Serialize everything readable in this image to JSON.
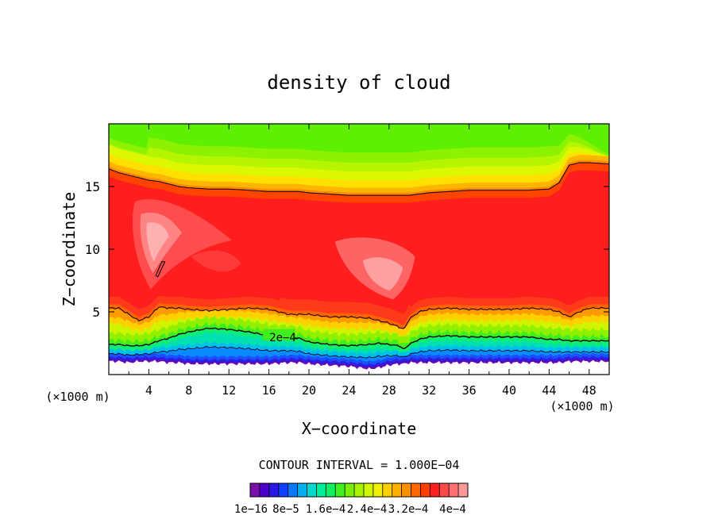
{
  "chart_data": {
    "type": "heatmap",
    "title": "density of cloud",
    "xlabel": "X−coordinate",
    "ylabel": "Z−coordinate",
    "x_unit_left": "(×1000 m)",
    "x_unit_right": "(×1000 m)",
    "xlim": [
      0,
      50
    ],
    "ylim": [
      0,
      20
    ],
    "xticks": [
      4,
      8,
      12,
      16,
      20,
      24,
      28,
      32,
      36,
      40,
      44,
      48
    ],
    "yticks": [
      5,
      10,
      15
    ],
    "contour_interval_text": "CONTOUR INTERVAL = 1.000E−04",
    "contour_label": "2e−4",
    "colorbar": {
      "labels": [
        "1e−16",
        "8e−5",
        "1.6e−4",
        "2.4e−4",
        "3.2e−4",
        "4e−4"
      ],
      "colors": [
        "#7a0faa",
        "#4a00c8",
        "#2a18e8",
        "#1040ff",
        "#0a78ff",
        "#00b0f0",
        "#00d8d0",
        "#00ee98",
        "#10f060",
        "#40f020",
        "#78f000",
        "#a8f400",
        "#d0f800",
        "#f0f000",
        "#ffd000",
        "#ffb000",
        "#ff9000",
        "#ff6800",
        "#ff4000",
        "#ff2020",
        "#ff4a4a",
        "#ff7070",
        "#ff9898"
      ]
    },
    "profile": {
      "x": [
        0,
        1,
        2,
        3,
        4,
        5,
        6,
        7,
        8,
        10,
        12,
        14,
        16,
        18,
        19,
        20,
        22,
        24,
        26,
        27,
        28,
        29,
        29.5,
        30,
        31,
        32,
        34,
        36,
        38,
        40,
        42,
        44,
        45,
        46,
        47,
        48,
        50
      ],
      "top_contour_z": [
        16.4,
        16.1,
        15.9,
        15.7,
        15.5,
        15.4,
        15.2,
        15.0,
        14.9,
        14.8,
        14.8,
        14.7,
        14.6,
        14.6,
        14.6,
        14.5,
        14.4,
        14.3,
        14.3,
        14.3,
        14.3,
        14.3,
        14.3,
        14.3,
        14.4,
        14.5,
        14.6,
        14.7,
        14.7,
        14.7,
        14.7,
        14.8,
        15.3,
        16.7,
        16.9,
        16.9,
        16.8
      ],
      "mid_contour_z": [
        5.3,
        5.3,
        4.8,
        4.3,
        4.6,
        5.4,
        5.3,
        5.3,
        5.2,
        5.1,
        5.2,
        5.3,
        5.2,
        4.8,
        4.8,
        4.8,
        4.6,
        4.6,
        4.5,
        4.3,
        4.1,
        3.8,
        3.6,
        4.4,
        5.0,
        5.2,
        5.3,
        5.2,
        5.2,
        5.2,
        5.3,
        5.2,
        5.0,
        4.6,
        5.0,
        5.3,
        5.3
      ],
      "lower_contour_z": [
        2.4,
        2.4,
        2.3,
        2.3,
        2.4,
        2.7,
        2.9,
        3.2,
        3.4,
        3.7,
        3.6,
        3.4,
        3.1,
        3.0,
        2.9,
        2.6,
        2.4,
        2.3,
        2.4,
        2.5,
        2.4,
        2.3,
        2.0,
        2.4,
        2.8,
        3.0,
        3.1,
        3.0,
        3.0,
        3.0,
        3.0,
        2.8,
        2.8,
        2.7,
        2.7,
        2.7,
        2.7
      ],
      "bottom_z": [
        1.1,
        1.1,
        1.0,
        1.1,
        1.1,
        1.1,
        1.0,
        1.0,
        0.9,
        0.9,
        0.9,
        0.9,
        0.9,
        1.0,
        1.0,
        0.9,
        0.8,
        0.7,
        0.5,
        0.6,
        0.8,
        0.9,
        0.9,
        1.0,
        1.0,
        1.0,
        1.0,
        1.0,
        1.0,
        1.0,
        1.0,
        1.0,
        1.0,
        1.1,
        1.1,
        1.1,
        1.1
      ]
    }
  }
}
